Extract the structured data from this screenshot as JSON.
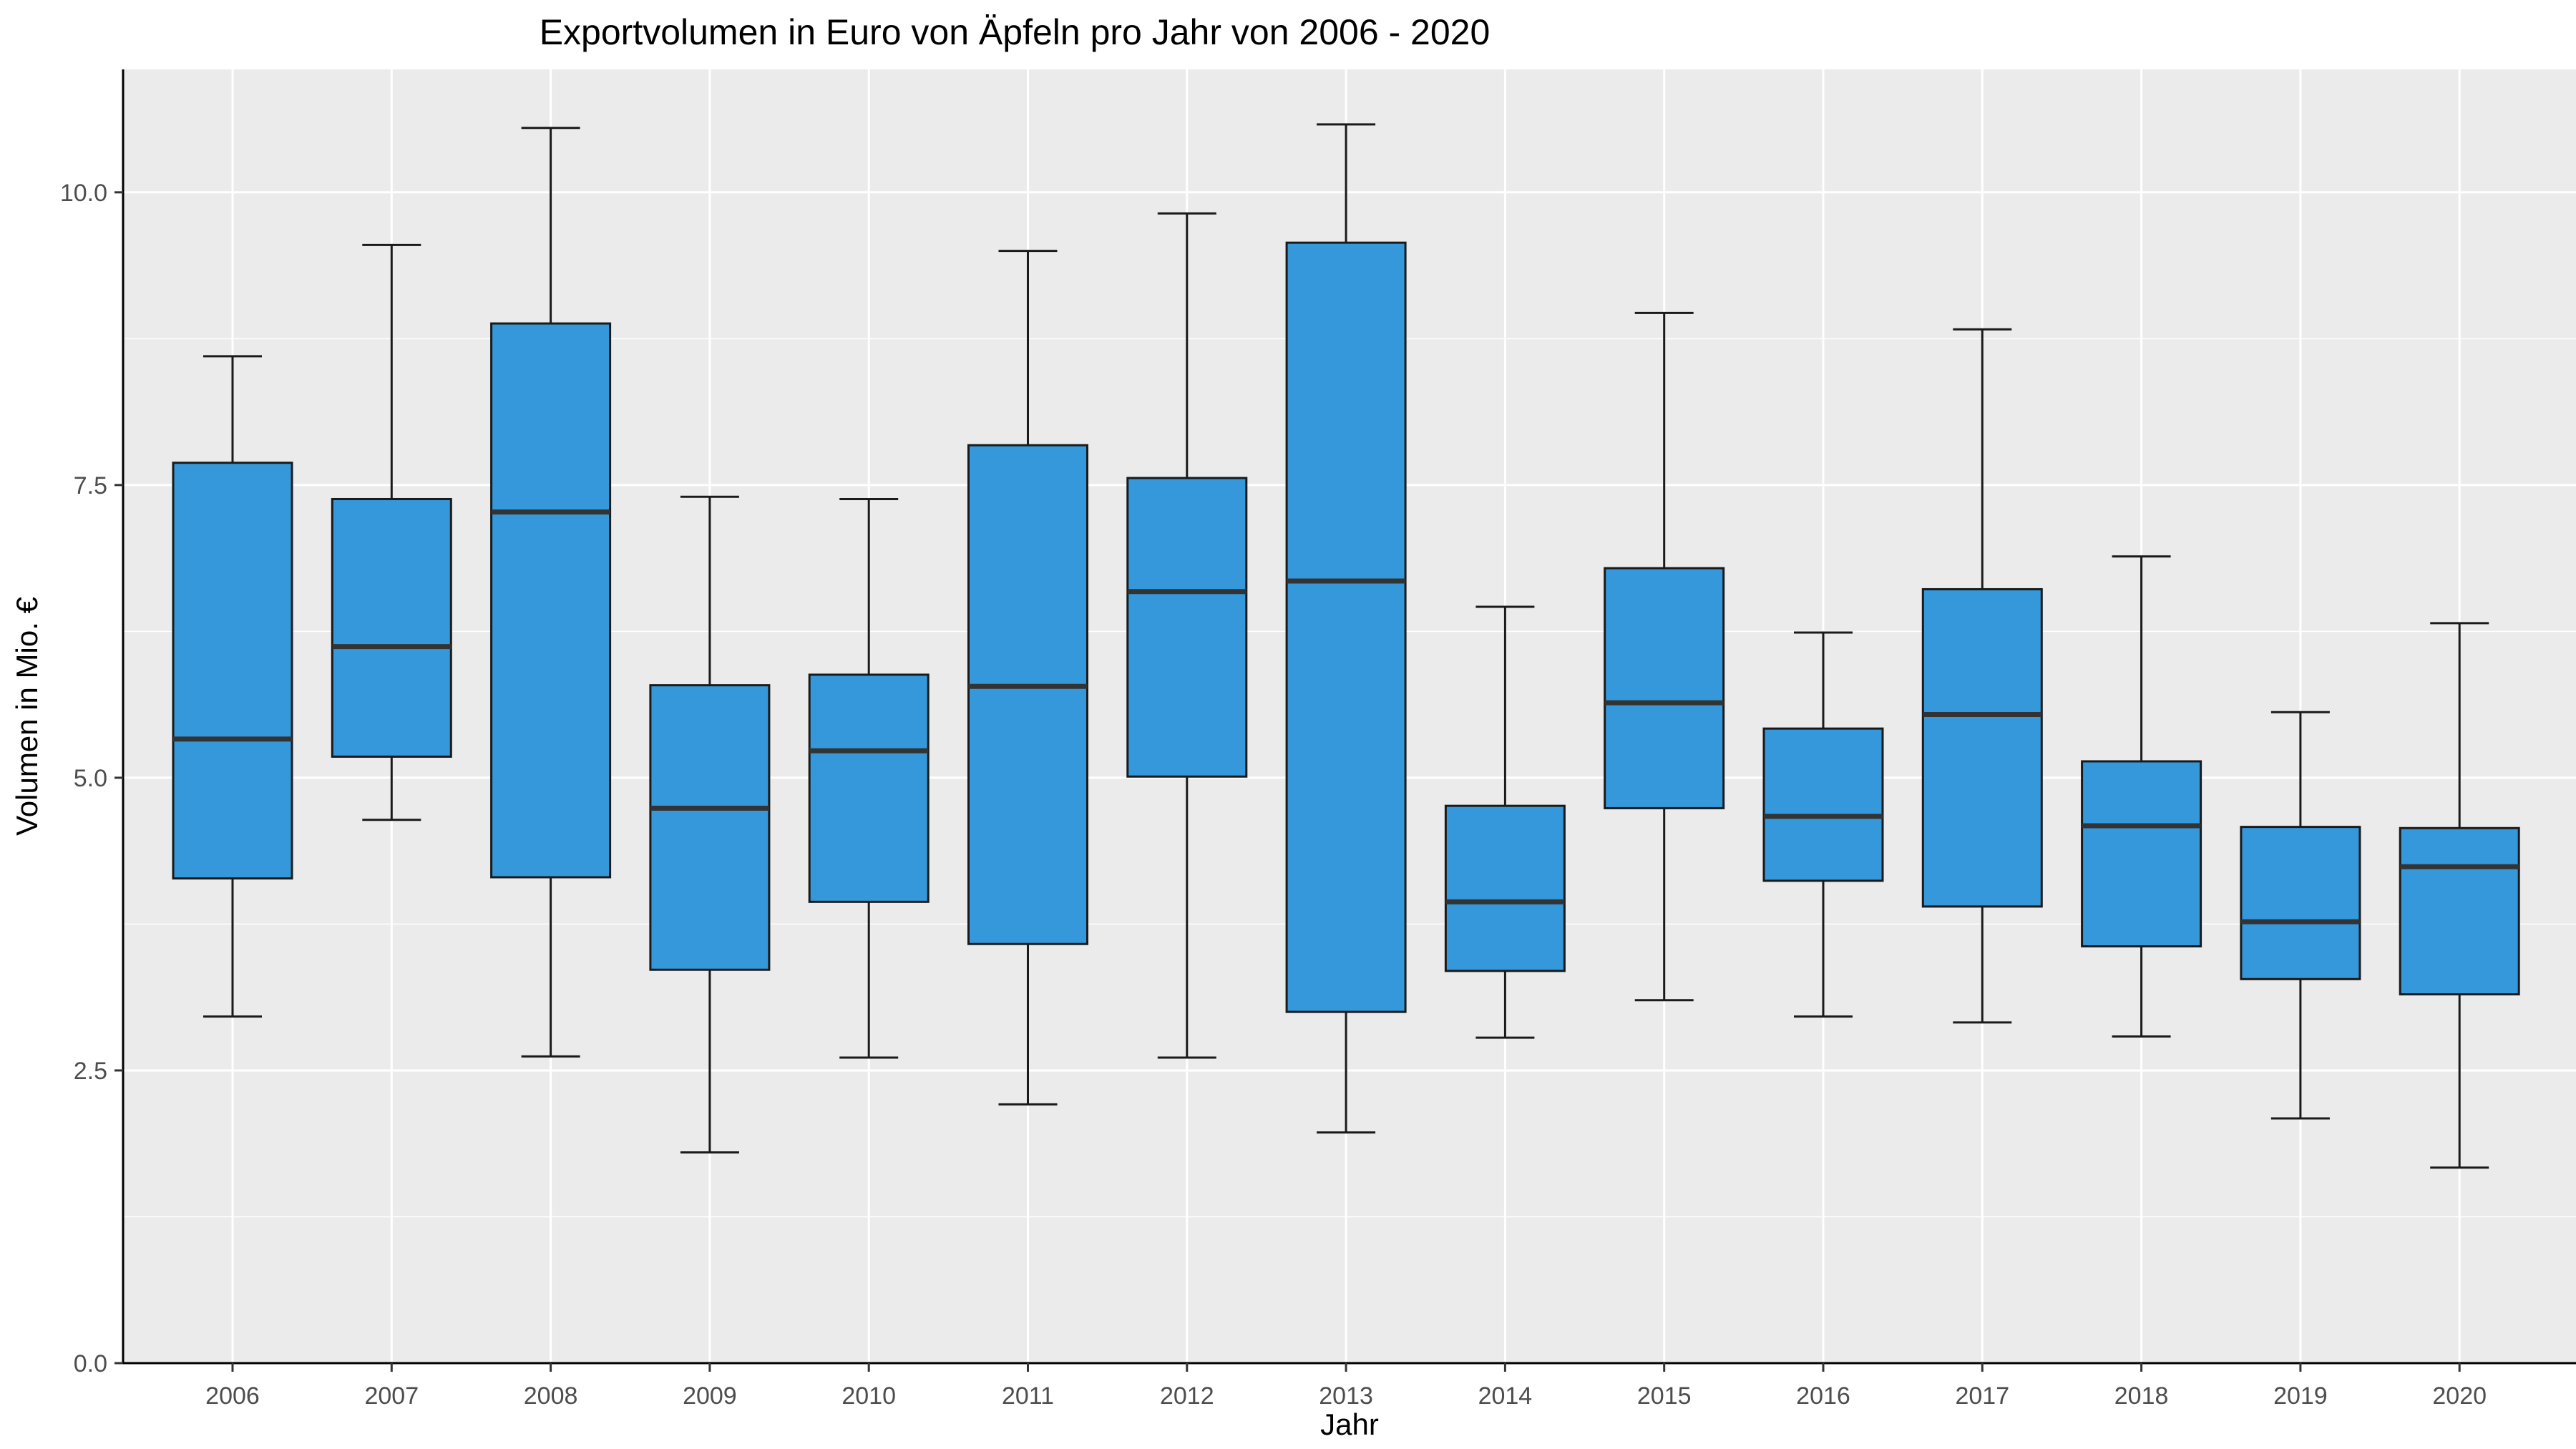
{
  "chart_data": {
    "type": "boxplot",
    "title": "Exportvolumen in Euro von Äpfeln pro Jahr von 2006 - 2020",
    "xlabel": "Jahr",
    "ylabel": "Volumen in Mio. €",
    "ylim": [
      0,
      11.05
    ],
    "y_ticks": [
      0,
      2.5,
      5,
      7.5,
      10
    ],
    "y_tick_labels": [
      "0.0",
      "2.5",
      "5.0",
      "7.5",
      "10.0"
    ],
    "grid": true,
    "box_fill": "#3498db",
    "panel_background": "#ebebeb",
    "categories": [
      "2006",
      "2007",
      "2008",
      "2009",
      "2010",
      "2011",
      "2012",
      "2013",
      "2014",
      "2015",
      "2016",
      "2017",
      "2018",
      "2019",
      "2020"
    ],
    "boxes": [
      {
        "x": "2006",
        "whisker_low": 2.96,
        "q1": 4.14,
        "median": 5.33,
        "q3": 7.69,
        "whisker_high": 8.6
      },
      {
        "x": "2007",
        "whisker_low": 4.64,
        "q1": 5.18,
        "median": 6.12,
        "q3": 7.38,
        "whisker_high": 9.55
      },
      {
        "x": "2008",
        "whisker_low": 2.62,
        "q1": 4.15,
        "median": 7.27,
        "q3": 8.88,
        "whisker_high": 10.55
      },
      {
        "x": "2009",
        "whisker_low": 1.8,
        "q1": 3.36,
        "median": 4.74,
        "q3": 5.79,
        "whisker_high": 7.4
      },
      {
        "x": "2010",
        "whisker_low": 2.61,
        "q1": 3.94,
        "median": 5.23,
        "q3": 5.88,
        "whisker_high": 7.38
      },
      {
        "x": "2011",
        "whisker_low": 2.21,
        "q1": 3.58,
        "median": 5.78,
        "q3": 7.84,
        "whisker_high": 9.5
      },
      {
        "x": "2012",
        "whisker_low": 2.61,
        "q1": 5.01,
        "median": 6.59,
        "q3": 7.56,
        "whisker_high": 9.82
      },
      {
        "x": "2013",
        "whisker_low": 1.97,
        "q1": 3.0,
        "median": 6.68,
        "q3": 9.57,
        "whisker_high": 10.58
      },
      {
        "x": "2014",
        "whisker_low": 2.78,
        "q1": 3.35,
        "median": 3.94,
        "q3": 4.76,
        "whisker_high": 6.46
      },
      {
        "x": "2015",
        "whisker_low": 3.1,
        "q1": 4.74,
        "median": 5.64,
        "q3": 6.79,
        "whisker_high": 8.97
      },
      {
        "x": "2016",
        "whisker_low": 2.96,
        "q1": 4.12,
        "median": 4.67,
        "q3": 5.42,
        "whisker_high": 6.24
      },
      {
        "x": "2017",
        "whisker_low": 2.91,
        "q1": 3.9,
        "median": 5.54,
        "q3": 6.61,
        "whisker_high": 8.83
      },
      {
        "x": "2018",
        "whisker_low": 2.79,
        "q1": 3.56,
        "median": 4.59,
        "q3": 5.14,
        "whisker_high": 6.89
      },
      {
        "x": "2019",
        "whisker_low": 2.09,
        "q1": 3.28,
        "median": 3.77,
        "q3": 4.58,
        "whisker_high": 5.56
      },
      {
        "x": "2020",
        "whisker_low": 1.67,
        "q1": 3.15,
        "median": 4.24,
        "q3": 4.57,
        "whisker_high": 6.32
      }
    ]
  }
}
